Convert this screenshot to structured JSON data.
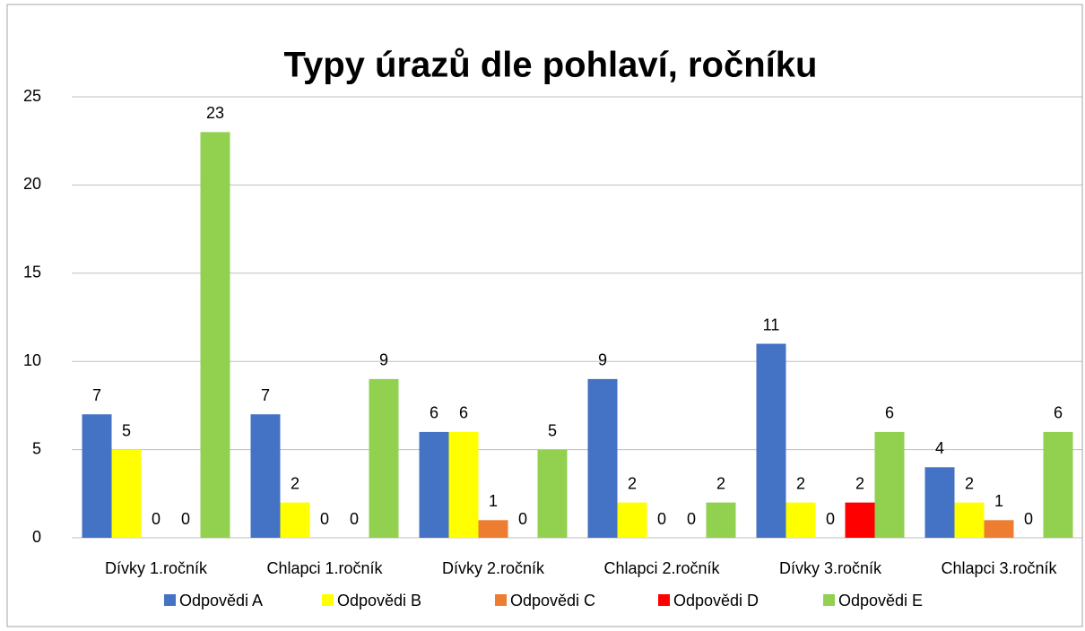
{
  "chart_data": {
    "type": "bar",
    "title": "Typy úrazů dle pohlaví, ročníku",
    "categories": [
      "Dívky 1.ročník",
      "Chlapci 1.ročník",
      "Dívky 2.ročník",
      "Chlapci 2.ročník",
      "Dívky 3.ročník",
      "Chlapci 3.ročník"
    ],
    "series": [
      {
        "name": "Odpovědi A",
        "color": "#4472c4",
        "values": [
          7,
          7,
          6,
          9,
          11,
          4
        ]
      },
      {
        "name": "Odpovědi B",
        "color": "#ffff00",
        "values": [
          5,
          2,
          6,
          2,
          2,
          2
        ]
      },
      {
        "name": "Odpovědi C",
        "color": "#ed7d31",
        "values": [
          0,
          0,
          1,
          0,
          0,
          1
        ]
      },
      {
        "name": "Odpovědi D",
        "color": "#ff0000",
        "values": [
          0,
          0,
          0,
          0,
          2,
          0
        ]
      },
      {
        "name": "Odpovědi E",
        "color": "#92d050",
        "values": [
          23,
          9,
          5,
          2,
          6,
          6
        ]
      }
    ],
    "ylim": [
      0,
      25
    ],
    "yticks": [
      0,
      5,
      10,
      15,
      20,
      25
    ],
    "grid": true,
    "legend": "bottom"
  }
}
